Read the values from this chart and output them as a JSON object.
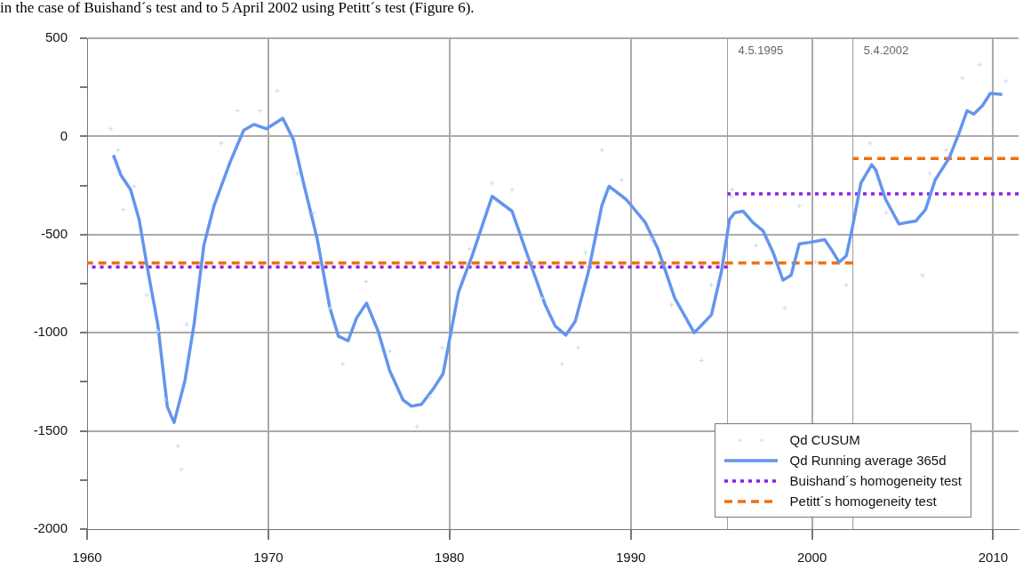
{
  "chart_data": {
    "type": "line",
    "annotations": [
      "in the case of Buishand´s test and to 5 April 2002 using Petitt´s test (Figure 6)."
    ],
    "xlim": [
      1960,
      2011.4
    ],
    "xticks": [
      1960,
      1970,
      1980,
      1990,
      2000,
      2010
    ],
    "ylim": [
      -2000,
      500
    ],
    "yticks": [
      -2000,
      {
        "value": -1750,
        "label": null
      },
      -1500,
      {
        "value": -1250,
        "label": null
      },
      -1000,
      {
        "value": -750,
        "label": null
      },
      -500,
      {
        "value": -250,
        "label": null
      },
      0,
      {
        "value": 250,
        "label": null
      },
      500
    ],
    "grid": true,
    "legend": "bottom right",
    "ref_lines": [
      {
        "axis": "x",
        "value": 1995.34,
        "label": "4.5.1995",
        "color": "#999999"
      },
      {
        "axis": "x",
        "value": 2002.26,
        "label": "5.4.2002",
        "color": "#999999"
      }
    ],
    "series": [
      {
        "name": "Qd CUSUM",
        "type": "scatter",
        "marker": "cross",
        "color": "#c6d7f5",
        "x": [
          1961.3,
          1961.7,
          1962.0,
          1962.6,
          1963.3,
          1963.9,
          1964.3,
          1965.0,
          1965.2,
          1965.5,
          1966.6,
          1967.4,
          1968.3,
          1969.55,
          1970.5,
          1971.6,
          1972.5,
          1973.4,
          1974.1,
          1975.4,
          1976.7,
          1978.2,
          1978.9,
          1979.6,
          1981.1,
          1982.35,
          1983.45,
          1985.1,
          1986.2,
          1987.1,
          1987.5,
          1988.4,
          1989.5,
          1991.15,
          1992.25,
          1993.9,
          1994.45,
          1995.55,
          1995.6,
          1996.9,
          1998.5,
          1999.3,
          2000.2,
          2001.9,
          2003.2,
          2004.1,
          2005.2,
          2006.1,
          2006.5,
          2007.4,
          2008.3,
          2009.25,
          2010.1,
          2010.7
        ],
        "values": [
          39,
          -70,
          -372,
          -254,
          -808,
          -993,
          -1343,
          -1579,
          -1696,
          -958,
          null,
          -35,
          131,
          131,
          232,
          -188,
          -389,
          -875,
          -1159,
          -739,
          -1094,
          -1479,
          -1326,
          -1076,
          -573,
          -238,
          -271,
          -824,
          -1159,
          -1076,
          -591,
          -70,
          -221,
          -523,
          -858,
          -1142,
          -757,
          -305,
          -271,
          -556,
          -875,
          -354,
          -639,
          -757,
          -35,
          -389,
          null,
          -707,
          -188,
          -70,
          297,
          365,
          null,
          282
        ]
      },
      {
        "name": "Qd Running average 365d",
        "marker": "none",
        "line_style": "solid",
        "color": "#6495ed",
        "x": [
          1961.45,
          1961.86,
          1962.4,
          1962.87,
          1963.3,
          1963.9,
          1964.43,
          1964.8,
          1965.4,
          1965.9,
          1966.44,
          1967,
          1967.9,
          1968.64,
          1969.2,
          1969.9,
          1970.8,
          1971.4,
          1971.9,
          1972.7,
          1973.4,
          1973.87,
          1974.4,
          1974.87,
          1975.42,
          1976.06,
          1976.7,
          1977.44,
          1977.9,
          1978.45,
          1979.1,
          1979.64,
          1979.97,
          1980.5,
          1981.25,
          1982.35,
          1983.45,
          1984.37,
          1985.28,
          1985.84,
          1986.42,
          1986.94,
          1987.66,
          1988.4,
          1988.8,
          1989.76,
          1990.8,
          1991.5,
          1992.43,
          1993.5,
          1994.45,
          1995,
          1995.45,
          1995.74,
          1996.2,
          1996.75,
          1997.3,
          1997.85,
          1998.4,
          1998.85,
          1999.3,
          1999.86,
          2000.7,
          2001.05,
          2001.5,
          2001.9,
          2002.25,
          2002.7,
          2003.3,
          2003.52,
          2004.07,
          2004.8,
          2005.73,
          2006.27,
          2006.8,
          2007.56,
          2008.1,
          2008.56,
          2008.93,
          2009.4,
          2009.84,
          2010.5
        ],
        "values": [
          -95,
          -196,
          -271,
          -423,
          -656,
          -958,
          -1378,
          -1457,
          -1243,
          -958,
          -556,
          -354,
          -129,
          31,
          61,
          39,
          92,
          -20,
          -221,
          -523,
          -875,
          -1018,
          -1041,
          -925,
          -849,
          -992,
          -1194,
          -1343,
          -1374,
          -1365,
          -1286,
          -1210,
          -1050,
          -792,
          -607,
          -305,
          -381,
          -623,
          -858,
          -967,
          -1012,
          -941,
          -691,
          -354,
          -254,
          -322,
          -438,
          -573,
          -824,
          -1000,
          -909,
          -690,
          -423,
          -389,
          -381,
          -439,
          -481,
          -590,
          -732,
          -707,
          -547,
          -540,
          -526,
          -573,
          -641,
          -607,
          -455,
          -238,
          -144,
          -171,
          -322,
          -446,
          -431,
          -372,
          -221,
          -112,
          13,
          131,
          114,
          156,
          219,
          214
        ]
      },
      {
        "name": "Buishand´s homogeneity test",
        "marker": "none",
        "line_style": "dotted",
        "color": "#8b1fe8",
        "x": [
          1960,
          1995.34
        ],
        "values": [
          -665,
          -665
        ]
      },
      {
        "name": "Petitt´s homogeneity test",
        "marker": "none",
        "line_style": "dashed",
        "color": "#f07010",
        "x": [
          1960,
          2002.26
        ],
        "values": [
          -645,
          -645
        ]
      },
      {
        "marker": "none",
        "line_style": "dotted",
        "color": "#8b1fe8",
        "x": [
          1995.34,
          2011.4
        ],
        "values": [
          -293,
          -293
        ]
      },
      {
        "marker": "none",
        "line_style": "dashed",
        "color": "#f07010",
        "x": [
          2002.26,
          2011.4
        ],
        "values": [
          -112,
          -112
        ]
      }
    ]
  }
}
